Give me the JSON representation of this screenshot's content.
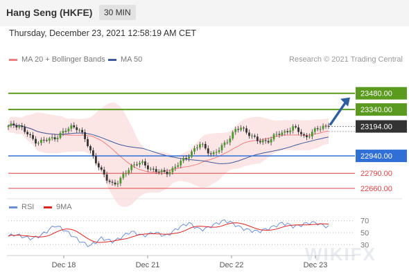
{
  "header": {
    "title": "Hang Seng (HKFE)",
    "timeframe": "30 MIN"
  },
  "timestamp": "Thursday, December 23, 2021 12:58:19 AM CET",
  "copyright": "Research © 2021 Trading Central",
  "watermark": "WIKIFX",
  "legend": {
    "ma20": {
      "label": "MA 20 + Bollinger Bands",
      "color": "#f08080"
    },
    "ma50": {
      "label": "MA 50",
      "color": "#3d5a99"
    },
    "rsi": {
      "label": "RSI",
      "color": "#6a8fd8"
    },
    "ma9": {
      "label": "9MA",
      "color": "#dd2222"
    }
  },
  "chart_data": [
    {
      "type": "candlestick",
      "x_ticks": [
        "Dec 18",
        "Dec 21",
        "Dec 22",
        "Dec 23"
      ],
      "ylim": [
        22600,
        23520
      ],
      "levels": [
        {
          "value": "23480.00",
          "color": "#5a9a1e",
          "kind": "resistance"
        },
        {
          "value": "23340.00",
          "color": "#5a9a1e",
          "kind": "resistance"
        },
        {
          "value": "23194.00",
          "color": "#333333",
          "kind": "last-price"
        },
        {
          "value": "22940.00",
          "color": "#2f6fd6",
          "kind": "pivot"
        },
        {
          "value": "22790.00",
          "color": "#dd4444",
          "kind": "support"
        },
        {
          "value": "22660.00",
          "color": "#dd4444",
          "kind": "support"
        }
      ],
      "price_anchors": [
        23190,
        23210,
        23200,
        23140,
        23090,
        23060,
        23070,
        23080,
        23100,
        23130,
        23160,
        23200,
        23180,
        23100,
        22990,
        22900,
        22800,
        22730,
        22700,
        22720,
        22780,
        22850,
        22880,
        22870,
        22840,
        22820,
        22800,
        22790,
        22820,
        22860,
        22900,
        22950,
        23000,
        23040,
        23000,
        22950,
        22980,
        23040,
        23100,
        23160,
        23180,
        23150,
        23100,
        23060,
        23070,
        23080,
        23120,
        23140,
        23160,
        23180,
        23150,
        23100,
        23130,
        23170,
        23200,
        23194
      ],
      "forecast_target": 23480
    },
    {
      "type": "line",
      "title": "RSI",
      "ylim": [
        20,
        80
      ],
      "y_ticks": [
        "70",
        "50",
        "30"
      ],
      "rsi_anchors": [
        44,
        47,
        45,
        42,
        40,
        43,
        48,
        55,
        62,
        58,
        52,
        45,
        38,
        32,
        28,
        34,
        41,
        38,
        35,
        40,
        46,
        52,
        49,
        45,
        47,
        51,
        48,
        44,
        50,
        57,
        62,
        66,
        60,
        55,
        57,
        62,
        66,
        70,
        68,
        63,
        58,
        55,
        53,
        52,
        55,
        58,
        62,
        66,
        64,
        60,
        62,
        65,
        67,
        66,
        62,
        60
      ]
    }
  ]
}
